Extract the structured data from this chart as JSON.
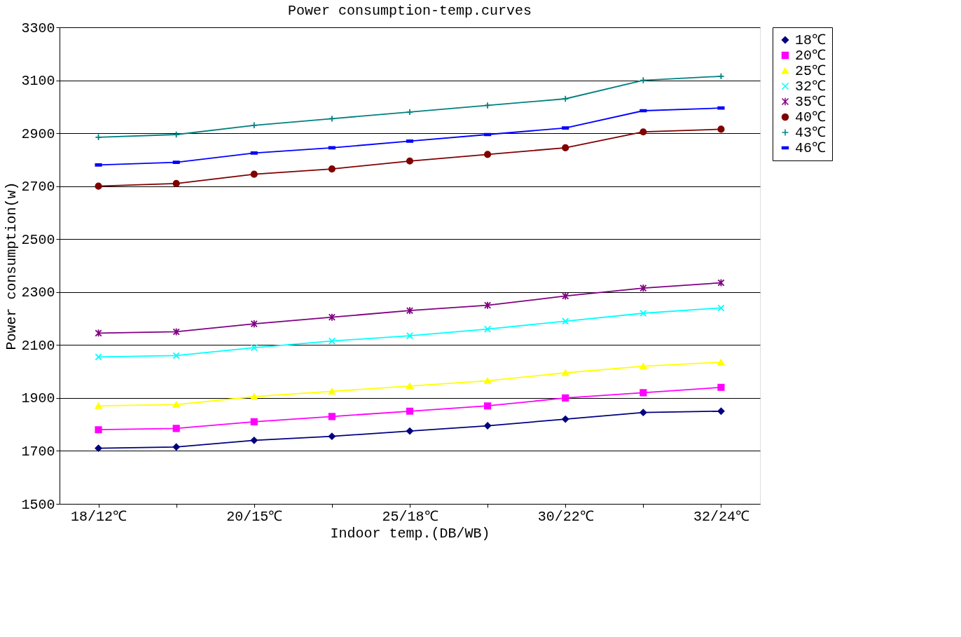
{
  "chart_data": {
    "type": "line",
    "title": "Power consumption-temp.curves",
    "xlabel": "Indoor temp.(DB/WB)",
    "ylabel": "Power consumption(w)",
    "categories": [
      "18/12℃",
      null,
      "20/15℃",
      null,
      "25/18℃",
      null,
      "30/22℃",
      null,
      "32/24℃"
    ],
    "ylim": [
      1500,
      3300
    ],
    "yticks": [
      1500,
      1700,
      1900,
      2100,
      2300,
      2500,
      2700,
      2900,
      3100,
      3300
    ],
    "grid": "y",
    "legend": "right",
    "series": [
      {
        "name": "18℃",
        "color": "#000080",
        "marker": "diamond",
        "values": [
          1710,
          1715,
          1740,
          1755,
          1775,
          1795,
          1820,
          1845,
          1850
        ]
      },
      {
        "name": "20℃",
        "color": "#ff00ff",
        "marker": "square",
        "values": [
          1780,
          1785,
          1810,
          1830,
          1850,
          1870,
          1900,
          1920,
          1940
        ]
      },
      {
        "name": "25℃",
        "color": "#ffff00",
        "marker": "triangle",
        "values": [
          1870,
          1875,
          1905,
          1925,
          1945,
          1965,
          1995,
          2020,
          2035
        ]
      },
      {
        "name": "32℃",
        "color": "#00ffff",
        "marker": "cross",
        "values": [
          2055,
          2060,
          2090,
          2115,
          2135,
          2160,
          2190,
          2220,
          2240
        ]
      },
      {
        "name": "35℃",
        "color": "#800080",
        "marker": "cross",
        "values": [
          2145,
          2150,
          2180,
          2205,
          2230,
          2250,
          2285,
          2315,
          2335
        ]
      },
      {
        "name": "40℃",
        "color": "#800000",
        "marker": "circle",
        "values": [
          2700,
          2710,
          2745,
          2765,
          2795,
          2820,
          2845,
          2905,
          2915
        ]
      },
      {
        "name": "43℃",
        "color": "#008080",
        "marker": "plus",
        "values": [
          2885,
          2895,
          2930,
          2955,
          2980,
          3005,
          3030,
          3100,
          3115
        ]
      },
      {
        "name": "46℃",
        "color": "#0000ff",
        "marker": "square",
        "values": [
          2780,
          2790,
          2825,
          2845,
          2870,
          2895,
          2920,
          2985,
          2995
        ]
      }
    ]
  }
}
